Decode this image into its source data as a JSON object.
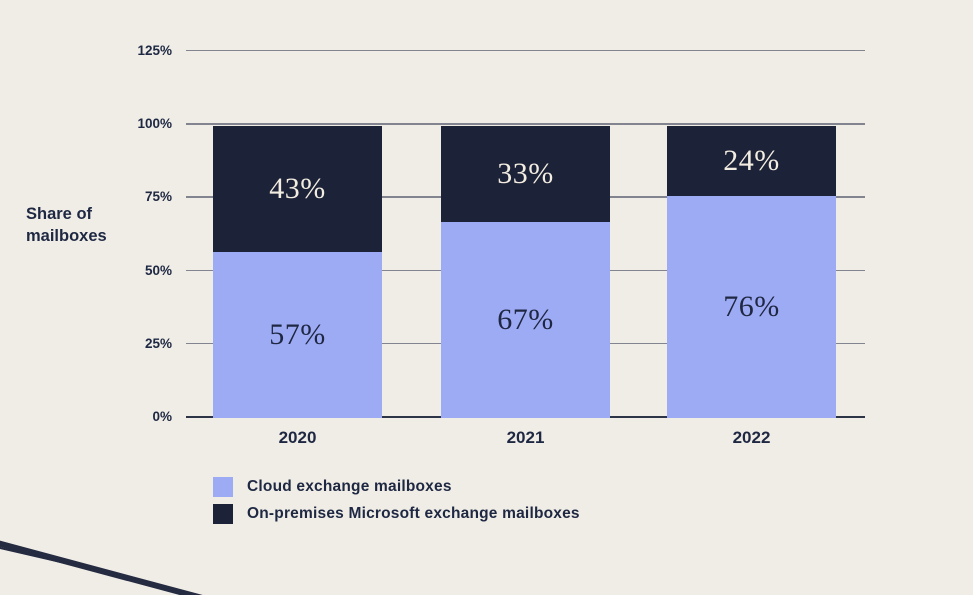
{
  "page": {
    "background": "#f0ede6"
  },
  "chart_data": {
    "type": "bar",
    "stacked": true,
    "ylabel": "Share of mailboxes",
    "categories": [
      "2020",
      "2021",
      "2022"
    ],
    "series": [
      {
        "name": "Cloud exchange mailboxes",
        "color": "#9dabf4",
        "label_color": "#1f2742",
        "values": [
          57,
          67,
          76
        ]
      },
      {
        "name": "On-premises Microsoft exchange mailboxes",
        "color": "#1c2237",
        "label_color": "#f2ece1",
        "values": [
          43,
          33,
          24
        ]
      }
    ],
    "bar_label_suffix": "%",
    "ytick_labels": [
      "0%",
      "25%",
      "50%",
      "75%",
      "100%",
      "125%"
    ],
    "ytick_values": [
      0,
      25,
      50,
      75,
      100,
      125
    ],
    "ylim": [
      0,
      125
    ],
    "grid": true,
    "gridline_color": "#82858f",
    "axis_line_color": "#2e3448",
    "legend_position": "bottom-left"
  }
}
